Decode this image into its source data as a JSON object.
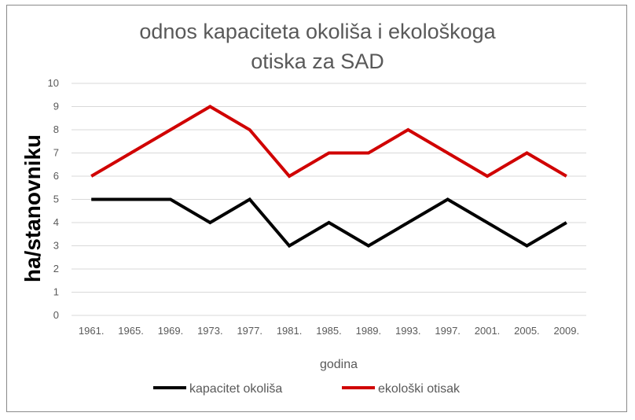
{
  "chart_data": {
    "type": "line",
    "title_lines": [
      "odnos kapaciteta okoliša i ekološkoga",
      "otiska za SAD"
    ],
    "xlabel": "godina",
    "ylabel": "ha/stanovniku",
    "categories": [
      "1961.",
      "1965.",
      "1969.",
      "1973.",
      "1977.",
      "1981.",
      "1985.",
      "1989.",
      "1993.",
      "1997.",
      "2001.",
      "2005.",
      "2009."
    ],
    "ylim": [
      0,
      10
    ],
    "yticks": [
      "0",
      "1",
      "2",
      "3",
      "4",
      "5",
      "6",
      "7",
      "8",
      "9",
      "10"
    ],
    "grid": true,
    "legend_position": "bottom",
    "series": [
      {
        "name": "kapacitet okoliša",
        "color": "#000000",
        "values": [
          5,
          5,
          5,
          4,
          5,
          3,
          4,
          3,
          4,
          5,
          4,
          3,
          4
        ]
      },
      {
        "name": "ekološki otisak",
        "color": "#d00000",
        "values": [
          6,
          7,
          8,
          9,
          8,
          6,
          7,
          7,
          8,
          7,
          6,
          7,
          6
        ]
      }
    ]
  }
}
